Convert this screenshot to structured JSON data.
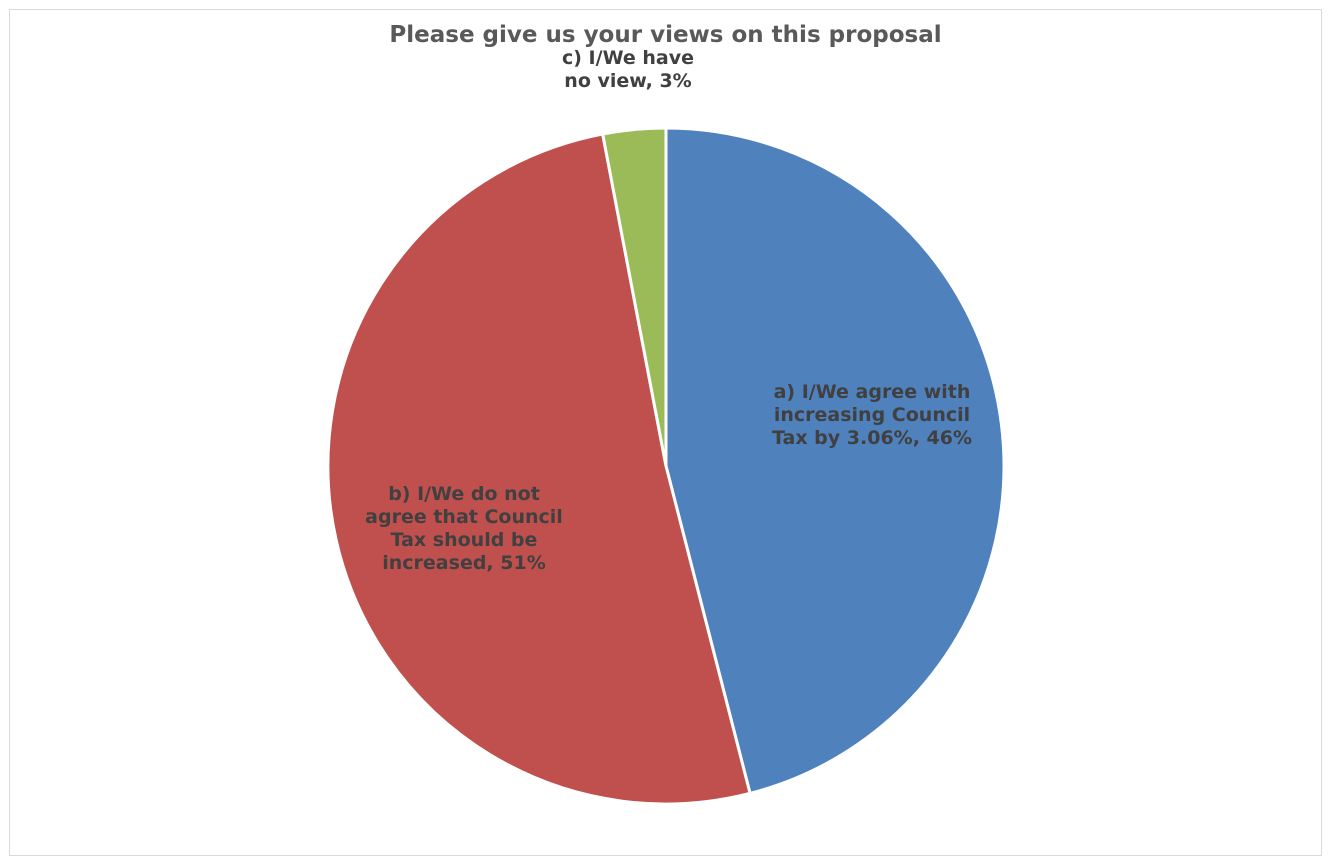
{
  "chart_data": {
    "type": "pie",
    "title": "Please give us your views on this proposal",
    "slices": [
      {
        "category": "a) I/We agree with increasing Council Tax by 3.06%",
        "value": 46,
        "label_lines": [
          "a) I/We agree with",
          "increasing Council",
          "Tax by 3.06%, 46%"
        ],
        "color": "#4f81bd"
      },
      {
        "category": "b) I/We do not agree that Council Tax should be increased",
        "value": 51,
        "label_lines": [
          "b) I/We do not",
          "agree that Council",
          "Tax should be",
          "increased, 51%"
        ],
        "color": "#c0504d"
      },
      {
        "category": "c) I/We have no view",
        "value": 3,
        "label_lines": [
          "c) I/We have",
          "no view, 3%"
        ],
        "color": "#9bbb59"
      }
    ],
    "start_angle": "12 o'clock",
    "direction": "clockwise",
    "legend": "none",
    "data_labels": "category name and percentage"
  }
}
